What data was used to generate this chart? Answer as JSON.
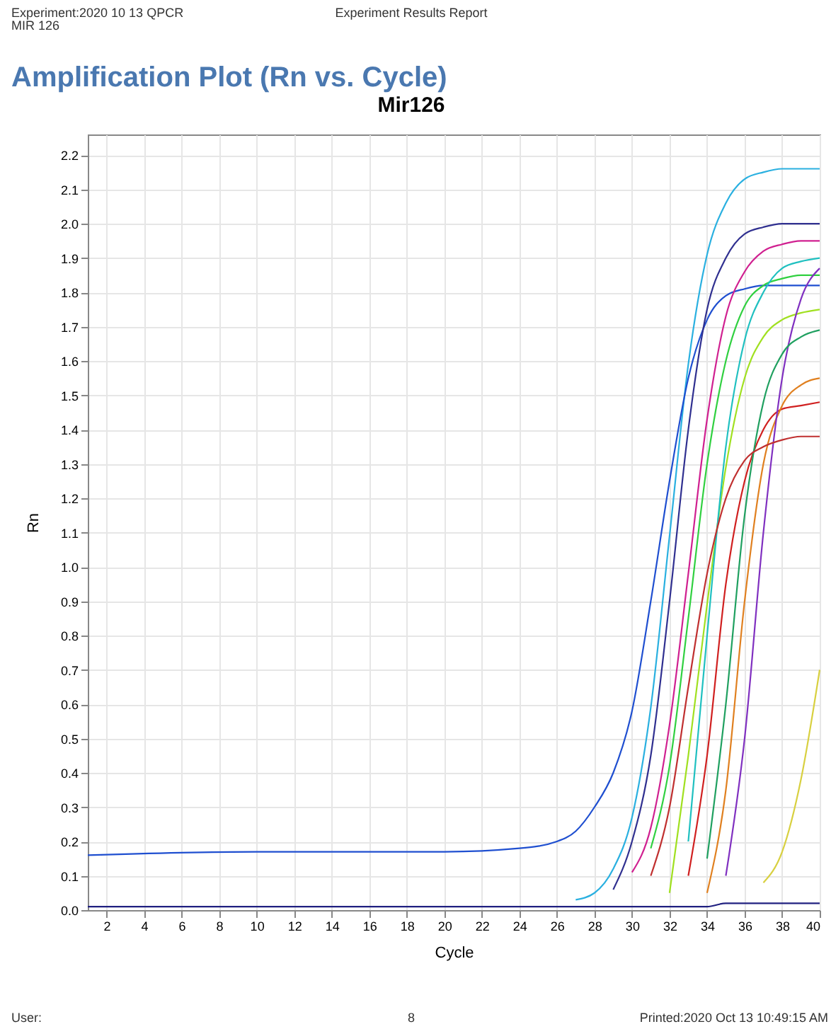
{
  "chart_data": {
    "type": "line",
    "title": "Amplification Plot (Rn vs. Cycle)",
    "subtitle": "Mir126",
    "xlabel": "Cycle",
    "ylabel": "Rn",
    "annotations": [
      "Experiment:2020 10 13 QPCR",
      "MIR 126",
      "Experiment Results Report",
      "User:",
      "8",
      "Printed:2020 Oct 13 10:49:15 AM"
    ],
    "x": [
      1,
      10,
      20,
      24,
      26,
      27,
      28,
      29,
      30,
      31,
      32,
      33,
      34,
      35,
      36,
      37,
      38,
      39,
      40
    ],
    "series": [
      {
        "color": "#2ab0e0",
        "x": [
          27,
          28,
          29,
          30,
          31,
          32,
          33,
          34,
          35,
          36,
          37,
          38,
          39,
          40
        ],
        "values": [
          0.03,
          0.05,
          0.12,
          0.27,
          0.59,
          1.09,
          1.59,
          1.91,
          2.06,
          2.13,
          2.15,
          2.16,
          2.16,
          2.16
        ]
      },
      {
        "color": "#1f4fd0",
        "values": [
          0.16,
          0.17,
          0.17,
          0.18,
          0.2,
          0.23,
          0.3,
          0.4,
          0.58,
          0.9,
          1.25,
          1.55,
          1.72,
          1.79,
          1.81,
          1.82,
          1.82,
          1.82,
          1.82
        ]
      },
      {
        "color": "#303090",
        "x": [
          29,
          30,
          31,
          32,
          33,
          34,
          35,
          36,
          37,
          38,
          39,
          40
        ],
        "values": [
          0.06,
          0.2,
          0.45,
          0.9,
          1.4,
          1.75,
          1.9,
          1.97,
          1.99,
          2.0,
          2.0,
          2.0
        ]
      },
      {
        "color": "#d02090",
        "x": [
          30,
          31,
          32,
          33,
          34,
          35,
          36,
          37,
          38,
          39,
          40
        ],
        "values": [
          0.11,
          0.24,
          0.54,
          0.98,
          1.43,
          1.73,
          1.86,
          1.92,
          1.94,
          1.95,
          1.95
        ]
      },
      {
        "color": "#30d040",
        "x": [
          31,
          32,
          33,
          34,
          35,
          36,
          37,
          38,
          39,
          40
        ],
        "values": [
          0.18,
          0.42,
          0.85,
          1.3,
          1.6,
          1.76,
          1.82,
          1.84,
          1.85,
          1.85
        ]
      },
      {
        "color": "#a0e020",
        "x": [
          32,
          33,
          34,
          35,
          36,
          37,
          38,
          39,
          40
        ],
        "values": [
          0.05,
          0.45,
          0.89,
          1.29,
          1.55,
          1.67,
          1.72,
          1.74,
          1.75
        ]
      },
      {
        "color": "#d02020",
        "x": [
          33,
          34,
          35,
          36,
          37,
          38,
          39,
          40
        ],
        "values": [
          0.1,
          0.45,
          0.95,
          1.25,
          1.4,
          1.46,
          1.47,
          1.48
        ]
      },
      {
        "color": "#20c0c0",
        "x": [
          33,
          34,
          35,
          36,
          37,
          38,
          39,
          40
        ],
        "values": [
          0.2,
          0.8,
          1.35,
          1.66,
          1.8,
          1.87,
          1.89,
          1.9
        ]
      },
      {
        "color": "#e08020",
        "x": [
          34,
          35,
          36,
          37,
          38,
          39,
          40
        ],
        "values": [
          0.05,
          0.35,
          0.9,
          1.3,
          1.47,
          1.53,
          1.55
        ]
      },
      {
        "color": "#8030c0",
        "x": [
          35,
          36,
          37,
          38,
          39,
          40
        ],
        "values": [
          0.1,
          0.5,
          1.1,
          1.55,
          1.78,
          1.87
        ]
      },
      {
        "color": "#20a060",
        "x": [
          34,
          35,
          36,
          37,
          38,
          39,
          40
        ],
        "values": [
          0.15,
          0.6,
          1.15,
          1.48,
          1.62,
          1.67,
          1.69
        ]
      },
      {
        "color": "#c03030",
        "x": [
          31,
          32,
          33,
          34,
          35,
          36,
          37,
          38,
          39,
          40
        ],
        "values": [
          0.1,
          0.3,
          0.65,
          0.98,
          1.2,
          1.31,
          1.35,
          1.37,
          1.38,
          1.38
        ]
      },
      {
        "color": "#d8d040",
        "x": [
          37,
          38,
          39,
          40
        ],
        "values": [
          0.08,
          0.17,
          0.38,
          0.7
        ]
      },
      {
        "color": "#202080",
        "values": [
          0.01,
          0.01,
          0.01,
          0.01,
          0.01,
          0.01,
          0.01,
          0.01,
          0.01,
          0.01,
          0.01,
          0.01,
          0.01,
          0.02,
          0.02,
          0.02,
          0.02,
          0.02,
          0.02
        ]
      }
    ],
    "xlim": [
      1,
      40
    ],
    "xticks": [
      2,
      4,
      6,
      8,
      10,
      12,
      14,
      16,
      18,
      20,
      22,
      24,
      26,
      28,
      30,
      32,
      34,
      36,
      38,
      40
    ],
    "ylim": [
      0,
      2.26
    ],
    "yticks": [
      {
        "value": 0,
        "label": "0.0"
      },
      0.1,
      0.2,
      0.3,
      0.4,
      0.5,
      0.6,
      0.7,
      0.8,
      0.9,
      {
        "value": 1,
        "label": "1.0"
      },
      1.1,
      1.2,
      1.3,
      1.4,
      1.5,
      1.6,
      1.7,
      1.8,
      1.9,
      {
        "value": 2,
        "label": "2.0"
      },
      2.1,
      2.2
    ],
    "grid": true
  }
}
